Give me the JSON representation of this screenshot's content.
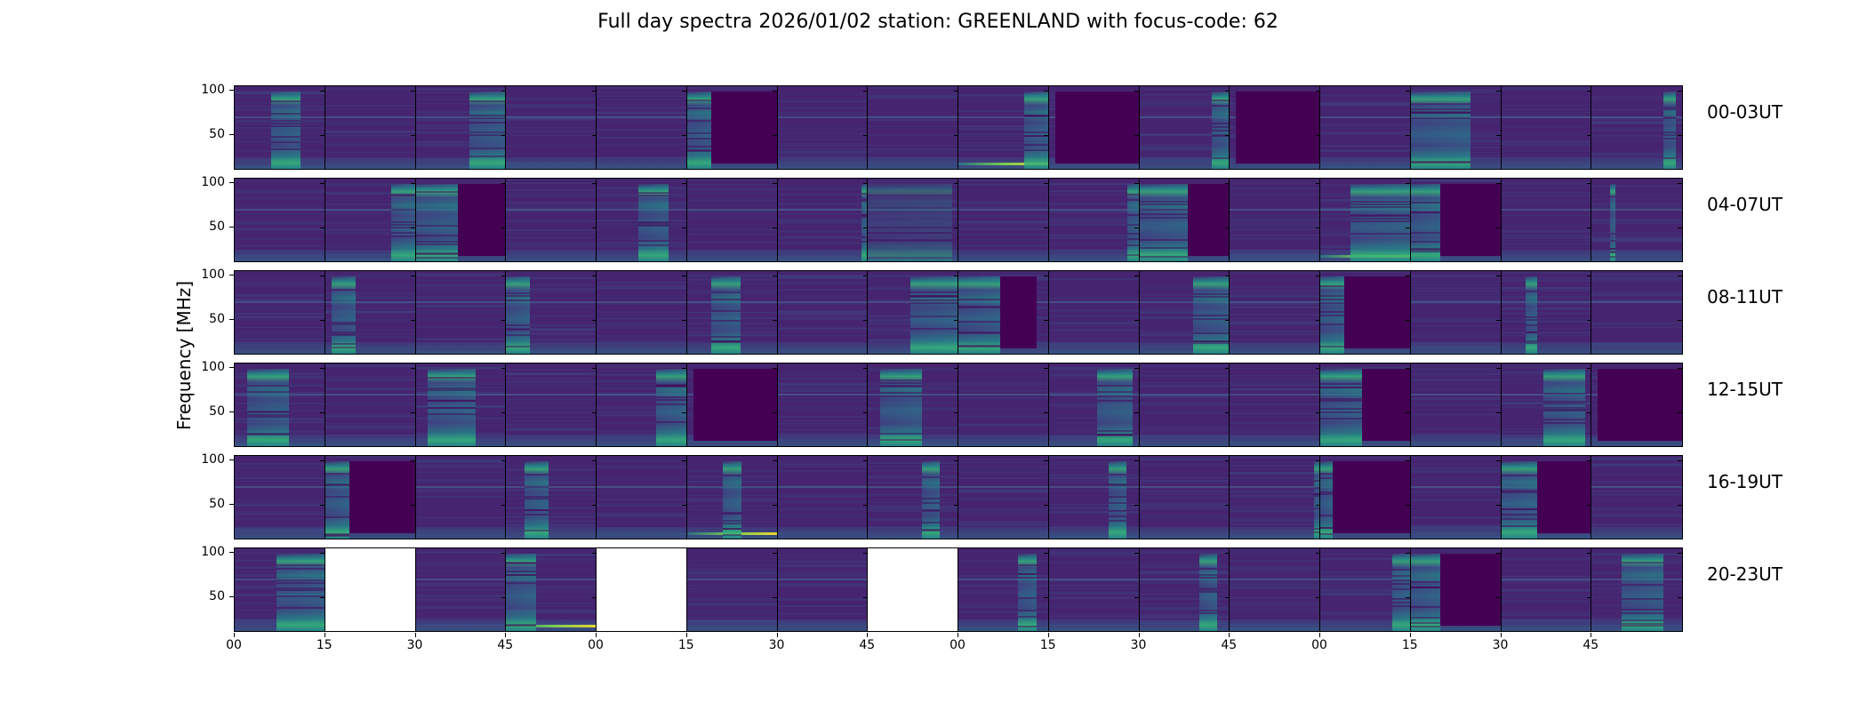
{
  "title": "Full day spectra 2026/01/02 station: GREENLAND with focus-code: 62",
  "chart_data": {
    "type": "heatmap",
    "title": "Full day spectra 2026/01/02 station: GREENLAND with focus-code: 62",
    "ylabel": "Frequency [MHz]",
    "xlabel": "",
    "colormap": "viridis",
    "colors": {
      "min": "#440154",
      "background": "#46246f",
      "mid": "#3b528b",
      "high": "#21918c",
      "peak": "#5ec962",
      "max": "#fde725"
    },
    "ylim": [
      10,
      105
    ],
    "yticks": [
      "50",
      "100"
    ],
    "xticks": [
      "00",
      "15",
      "30",
      "45",
      "00",
      "15",
      "30",
      "45",
      "00",
      "15",
      "30",
      "45",
      "00",
      "15",
      "30",
      "45"
    ],
    "panel_minutes": 15,
    "rows": [
      {
        "label": "00-03UT",
        "panels": [
          {
            "burst": [
              6,
              11
            ]
          },
          {},
          {
            "burst": [
              9,
              15
            ]
          },
          {},
          {},
          {
            "burst": [
              0,
              4
            ],
            "quiet": [
              4,
              15
            ]
          },
          {},
          {},
          {
            "burst": [
              11,
              15
            ],
            "rfi": "strong"
          },
          {
            "quiet": [
              1,
              15
            ]
          },
          {
            "burst": [
              12,
              15
            ]
          },
          {
            "quiet": [
              1,
              15
            ]
          },
          {},
          {
            "burst": [
              0,
              10
            ]
          },
          {},
          {
            "burst": [
              12,
              14
            ]
          }
        ]
      },
      {
        "label": "04-07UT",
        "panels": [
          {},
          {
            "burst": [
              11,
              15
            ]
          },
          {
            "burst": [
              0,
              7
            ],
            "quiet": [
              7,
              15
            ]
          },
          {},
          {
            "burst": [
              7,
              12
            ]
          },
          {},
          {
            "burst": [
              14,
              15
            ]
          },
          {
            "burst": [
              0,
              14
            ],
            "faint": true
          },
          {},
          {
            "burst": [
              13,
              15
            ]
          },
          {
            "burst": [
              0,
              8
            ],
            "quiet": [
              8,
              15
            ]
          },
          {},
          {
            "burst": [
              5,
              15
            ],
            "rfi": "strong"
          },
          {
            "burst": [
              0,
              5
            ],
            "quiet": [
              5,
              15
            ]
          },
          {},
          {
            "burst": [
              3,
              4
            ]
          }
        ]
      },
      {
        "label": "08-11UT",
        "panels": [
          {},
          {
            "burst": [
              1,
              5
            ]
          },
          {},
          {
            "burst": [
              0,
              4
            ]
          },
          {},
          {
            "burst": [
              4,
              9
            ]
          },
          {},
          {
            "burst": [
              7,
              15
            ]
          },
          {
            "burst": [
              0,
              7
            ],
            "quiet": [
              7,
              13
            ]
          },
          {},
          {
            "burst": [
              9,
              15
            ]
          },
          {},
          {
            "burst": [
              0,
              4
            ],
            "quiet": [
              4,
              15
            ]
          },
          {},
          {
            "burst": [
              4,
              6
            ]
          },
          {}
        ]
      },
      {
        "label": "12-15UT",
        "panels": [
          {
            "burst": [
              2,
              9
            ]
          },
          {},
          {
            "burst": [
              2,
              10
            ]
          },
          {},
          {
            "burst": [
              10,
              15
            ]
          },
          {
            "quiet": [
              1,
              15
            ]
          },
          {},
          {
            "burst": [
              2,
              9
            ]
          },
          {},
          {
            "burst": [
              8,
              14
            ]
          },
          {},
          {},
          {
            "burst": [
              0,
              7
            ],
            "quiet": [
              7,
              15
            ]
          },
          {},
          {
            "burst": [
              7,
              14
            ]
          },
          {
            "quiet": [
              1,
              15
            ]
          }
        ]
      },
      {
        "label": "16-19UT",
        "panels": [
          {},
          {
            "burst": [
              0,
              4
            ],
            "quiet": [
              4,
              15
            ]
          },
          {},
          {
            "burst": [
              3,
              7
            ]
          },
          {},
          {
            "burst": [
              6,
              9
            ],
            "rfi": "strong"
          },
          {},
          {
            "burst": [
              9,
              12
            ]
          },
          {},
          {
            "burst": [
              10,
              13
            ]
          },
          {},
          {
            "burst": [
              14,
              15
            ]
          },
          {
            "burst": [
              0,
              2
            ],
            "quiet": [
              2,
              15
            ]
          },
          {},
          {
            "burst": [
              0,
              6
            ],
            "quiet": [
              6,
              15
            ]
          },
          {}
        ]
      },
      {
        "label": "20-23UT",
        "panels": [
          {
            "burst": [
              7,
              15
            ]
          },
          {
            "blank": true
          },
          {},
          {
            "burst": [
              0,
              5
            ],
            "rfi": "strong"
          },
          {
            "blank": true
          },
          {},
          {},
          {
            "blank": true
          },
          {
            "burst": [
              10,
              13
            ]
          },
          {},
          {
            "burst": [
              10,
              13
            ]
          },
          {},
          {
            "burst": [
              12,
              15
            ]
          },
          {
            "burst": [
              0,
              5
            ],
            "quiet": [
              5,
              15
            ]
          },
          {},
          {
            "burst": [
              5,
              12
            ]
          }
        ]
      }
    ]
  }
}
